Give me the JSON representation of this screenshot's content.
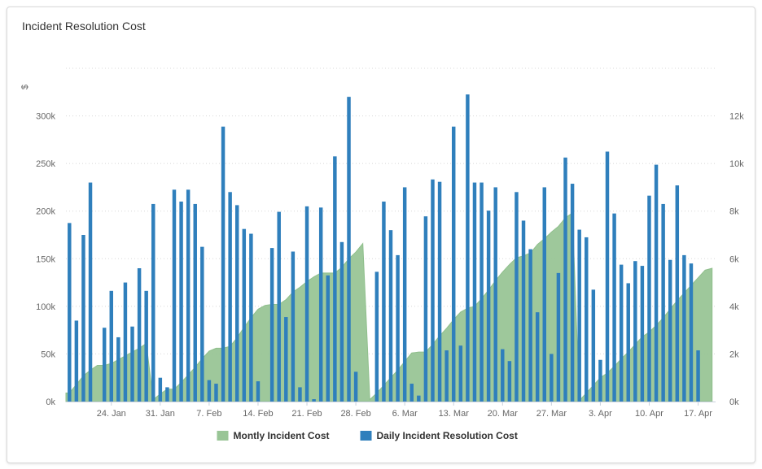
{
  "chart_data": {
    "type": "bar",
    "title": "Incident Resolution Cost",
    "y_unit_label": "$",
    "y_left_ticks": [
      "0k",
      "50k",
      "100k",
      "150k",
      "200k",
      "250k",
      "300k"
    ],
    "y_right_ticks": [
      "0k",
      "2k",
      "4k",
      "6k",
      "8k",
      "10k",
      "12k"
    ],
    "ylim_left": [
      0,
      350000
    ],
    "ylim_right": [
      0,
      14000
    ],
    "x_ticks": [
      "24. Jan",
      "31. Jan",
      "7. Feb",
      "14. Feb",
      "21. Feb",
      "28. Feb",
      "6. Mar",
      "13. Mar",
      "20. Mar",
      "27. Mar",
      "3. Apr",
      "10. Apr",
      "17. Apr"
    ],
    "start_date": "2020-01-18",
    "grid": true,
    "legend_position": "bottom-center",
    "series": [
      {
        "name": "Montly Incident Cost",
        "type": "area",
        "axis": "left",
        "color": "#99c596",
        "values": [
          9000,
          18000,
          27000,
          33000,
          38000,
          38000,
          40000,
          44000,
          48000,
          52000,
          56000,
          61000,
          2000,
          8000,
          13000,
          13000,
          20000,
          28000,
          36000,
          45000,
          53000,
          56000,
          56000,
          58000,
          67000,
          78000,
          88000,
          97000,
          101000,
          102000,
          102000,
          107000,
          115000,
          120000,
          126000,
          131000,
          135000,
          135000,
          135000,
          141000,
          150000,
          157000,
          166000,
          2000,
          9000,
          17000,
          25000,
          33000,
          42000,
          51000,
          52000,
          52000,
          60000,
          69000,
          77000,
          86000,
          94000,
          98000,
          100000,
          108000,
          117000,
          127000,
          136000,
          144000,
          151000,
          153000,
          156000,
          165000,
          171000,
          178000,
          184000,
          193000,
          198000,
          1000,
          9000,
          17000,
          25000,
          30000,
          37000,
          45000,
          52000,
          60000,
          68000,
          73000,
          80000,
          88000,
          97000,
          106000,
          114000,
          122000,
          130000,
          138000,
          140000
        ]
      },
      {
        "name": "Daily Incident Resolution Cost",
        "type": "column",
        "axis": "right",
        "color": "#2f7fbc",
        "values": [
          7500,
          3400,
          7000,
          9200,
          null,
          3100,
          4650,
          2700,
          5000,
          3150,
          5600,
          4650,
          8300,
          1000,
          600,
          8900,
          8400,
          8900,
          8300,
          6500,
          900,
          750,
          11550,
          8800,
          8250,
          7250,
          7050,
          850,
          null,
          6450,
          7970,
          3550,
          6300,
          600,
          8200,
          100,
          8150,
          5300,
          10300,
          6700,
          12800,
          1250,
          null,
          null,
          5450,
          8400,
          7200,
          6150,
          9000,
          750,
          250,
          7780,
          9330,
          9230,
          2150,
          11550,
          2350,
          12900,
          9200,
          9200,
          8020,
          9000,
          2200,
          1700,
          8800,
          7600,
          6400,
          3750,
          9000,
          2000,
          5400,
          10250,
          9150,
          7220,
          6900,
          4700,
          1750,
          10500,
          7900,
          5750,
          4970,
          5900,
          5700,
          8650,
          9950,
          8300,
          5950,
          9080,
          6150,
          5800,
          2150
        ]
      }
    ]
  }
}
